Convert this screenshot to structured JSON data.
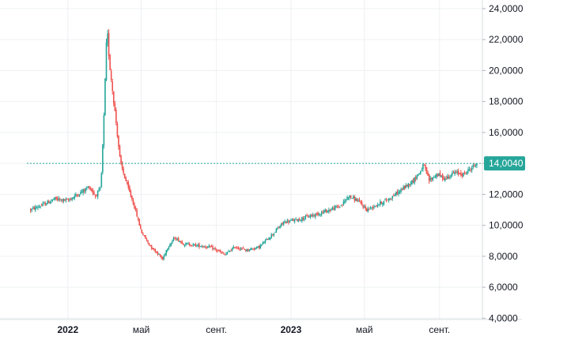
{
  "chart_data": {
    "type": "candlestick",
    "x_ticks": [
      {
        "label": "2022",
        "date": "2022-01-01",
        "bold": true
      },
      {
        "label": "май",
        "date": "2022-05-01",
        "bold": false
      },
      {
        "label": "сент.",
        "date": "2022-09-01",
        "bold": false
      },
      {
        "label": "2023",
        "date": "2023-01-01",
        "bold": true
      },
      {
        "label": "май",
        "date": "2023-05-01",
        "bold": false
      },
      {
        "label": "сент.",
        "date": "2023-09-01",
        "bold": false
      }
    ],
    "y_ticks": [
      "4,0000",
      "6,0000",
      "8,0000",
      "10,0000",
      "12,0000",
      "14,0000",
      "16,0000",
      "18,0000",
      "20,0000",
      "22,0000",
      "24,0000"
    ],
    "ylim": [
      3,
      24.2
    ],
    "xlim": [
      "2021-10-26",
      "2023-11-05"
    ],
    "grid": true,
    "current_price": {
      "value": 14.004,
      "label": "14,0040"
    },
    "colors": {
      "up": "#26a69a",
      "down": "#ef5350",
      "price_line": "#26a69a",
      "grid": "#eef0f3"
    },
    "path": [
      [
        "2021-11-01",
        11.0
      ],
      [
        "2021-11-20",
        11.3
      ],
      [
        "2021-12-10",
        11.7
      ],
      [
        "2022-01-01",
        11.6
      ],
      [
        "2022-01-25",
        12.2
      ],
      [
        "2022-02-05",
        12.5
      ],
      [
        "2022-02-15",
        11.9
      ],
      [
        "2022-02-24",
        12.4
      ],
      [
        "2022-03-01",
        17.0
      ],
      [
        "2022-03-06",
        22.8
      ],
      [
        "2022-03-10",
        20.5
      ],
      [
        "2022-03-20",
        17.0
      ],
      [
        "2022-03-28",
        14.0
      ],
      [
        "2022-04-08",
        12.6
      ],
      [
        "2022-04-20",
        11.2
      ],
      [
        "2022-05-01",
        9.6
      ],
      [
        "2022-05-15",
        8.7
      ],
      [
        "2022-05-28",
        8.2
      ],
      [
        "2022-06-05",
        7.8
      ],
      [
        "2022-06-12",
        8.5
      ],
      [
        "2022-06-25",
        9.2
      ],
      [
        "2022-07-10",
        8.8
      ],
      [
        "2022-08-01",
        8.7
      ],
      [
        "2022-08-20",
        8.6
      ],
      [
        "2022-09-01",
        8.4
      ],
      [
        "2022-09-15",
        8.1
      ],
      [
        "2022-10-01",
        8.6
      ],
      [
        "2022-10-20",
        8.4
      ],
      [
        "2022-11-10",
        8.6
      ],
      [
        "2022-12-01",
        9.4
      ],
      [
        "2022-12-20",
        10.2
      ],
      [
        "2023-01-15",
        10.4
      ],
      [
        "2023-02-10",
        10.7
      ],
      [
        "2023-03-05",
        11.0
      ],
      [
        "2023-03-25",
        11.3
      ],
      [
        "2023-04-05",
        11.9
      ],
      [
        "2023-04-20",
        11.6
      ],
      [
        "2023-05-05",
        11.0
      ],
      [
        "2023-05-20",
        11.3
      ],
      [
        "2023-06-10",
        11.7
      ],
      [
        "2023-07-01",
        12.3
      ],
      [
        "2023-07-20",
        12.9
      ],
      [
        "2023-08-01",
        13.5
      ],
      [
        "2023-08-06",
        13.9
      ],
      [
        "2023-08-15",
        12.9
      ],
      [
        "2023-08-28",
        13.3
      ],
      [
        "2023-09-10",
        13.0
      ],
      [
        "2023-09-25",
        13.4
      ],
      [
        "2023-10-10",
        13.3
      ],
      [
        "2023-10-20",
        13.6
      ],
      [
        "2023-11-01",
        14.0
      ]
    ]
  }
}
